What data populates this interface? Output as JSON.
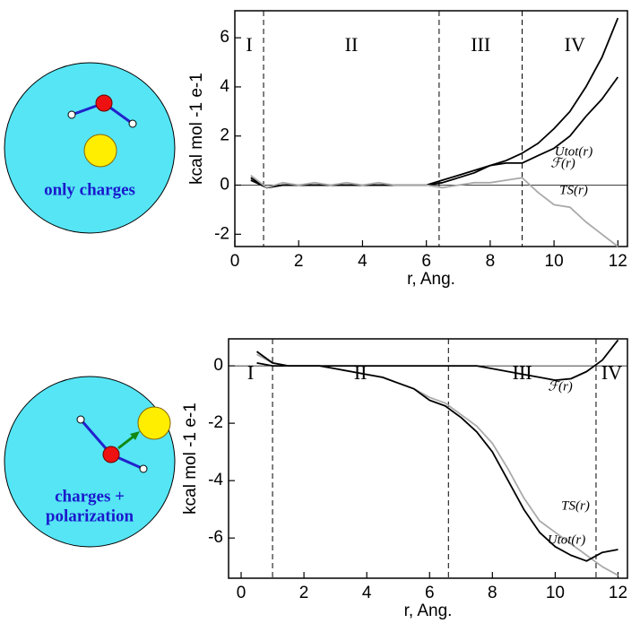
{
  "insets": [
    {
      "lines": [
        "only charges"
      ]
    },
    {
      "lines": [
        "charges +",
        "polarization"
      ]
    }
  ],
  "chart_data": [
    {
      "type": "line",
      "xlabel": "r, Ang.",
      "ylabel": "kcal mol -1  e-1",
      "xlim": [
        0,
        12.3
      ],
      "ylim": [
        -2.5,
        7.1
      ],
      "xticks": [
        0,
        2,
        4,
        6,
        8,
        10,
        12
      ],
      "yticks": [
        -2,
        0,
        2,
        4,
        6
      ],
      "vlines": [
        0.9,
        6.4,
        9.0
      ],
      "regions": [
        "I",
        "II",
        "III",
        "IV"
      ],
      "x": [
        0.5,
        1,
        1.5,
        2,
        2.5,
        3,
        3.5,
        4,
        4.5,
        5,
        5.5,
        6,
        6.5,
        7,
        7.5,
        8,
        8.5,
        9,
        9.5,
        10,
        10.5,
        11,
        11.5,
        12
      ],
      "series": [
        {
          "name": "ℱ(r)",
          "color": "#000000",
          "values": [
            0.2,
            -0.1,
            0,
            0,
            0,
            0,
            0,
            0,
            0,
            0,
            0,
            0,
            0.1,
            0.3,
            0.5,
            0.8,
            1.0,
            1.3,
            1.7,
            2.3,
            3.0,
            4.0,
            5.2,
            6.8
          ]
        },
        {
          "name": "Utot(r)",
          "color": "#000000",
          "values": [
            0.3,
            -0.1,
            0,
            0,
            0,
            0,
            0,
            0,
            0,
            0,
            0,
            0,
            0.2,
            0.4,
            0.6,
            0.8,
            0.9,
            0.9,
            1.2,
            1.5,
            2.0,
            2.8,
            3.5,
            4.4
          ]
        },
        {
          "name": "TS(r)",
          "color": "#aaaaaa",
          "values": [
            0.4,
            -0.1,
            0.1,
            0,
            0.1,
            0,
            0.1,
            0,
            0.1,
            0,
            0,
            0,
            -0.1,
            0,
            0.1,
            0.1,
            0.2,
            0.3,
            -0.3,
            -0.8,
            -0.9,
            -1.5,
            -2.0,
            -2.5
          ]
        }
      ]
    },
    {
      "type": "line",
      "xlabel": "r, Ang.",
      "ylabel": "kcal mol -1  e-1",
      "xlim": [
        -0.4,
        12.3
      ],
      "ylim": [
        -7.4,
        0.94
      ],
      "xticks": [
        0,
        2,
        4,
        6,
        8,
        10,
        12
      ],
      "yticks": [
        -6,
        -4,
        -2,
        0
      ],
      "vlines": [
        1.0,
        6.6,
        11.3
      ],
      "regions": [
        "I",
        "II",
        "III",
        "IV"
      ],
      "x": [
        0.5,
        1,
        1.5,
        2,
        2.5,
        3,
        3.5,
        4,
        4.5,
        5,
        5.5,
        6,
        6.5,
        7,
        7.5,
        8,
        8.5,
        9,
        9.5,
        10,
        10.5,
        11,
        11.5,
        12
      ],
      "series": [
        {
          "name": "ℱ(r)",
          "color": "#000000",
          "values": [
            0.1,
            0,
            0,
            0,
            0,
            0,
            0,
            0,
            0,
            0,
            0,
            0,
            0,
            0,
            0,
            -0.1,
            -0.2,
            -0.3,
            -0.4,
            -0.5,
            -0.45,
            -0.2,
            0.2,
            0.9
          ]
        },
        {
          "name": "TS(r)",
          "color": "#aaaaaa",
          "values": [
            0.4,
            0.1,
            0,
            0,
            0,
            -0.1,
            -0.2,
            -0.3,
            -0.4,
            -0.6,
            -0.8,
            -1.1,
            -1.3,
            -1.7,
            -2.1,
            -2.7,
            -3.6,
            -4.6,
            -5.4,
            -5.8,
            -6.2,
            -6.6,
            -7.0,
            -7.3
          ]
        },
        {
          "name": "Utot(r)",
          "color": "#000000",
          "values": [
            0.5,
            0.1,
            0,
            0,
            0,
            -0.1,
            -0.2,
            -0.3,
            -0.4,
            -0.6,
            -0.8,
            -1.2,
            -1.4,
            -1.8,
            -2.3,
            -3.0,
            -4.0,
            -5.0,
            -5.8,
            -6.3,
            -6.6,
            -6.8,
            -6.5,
            -6.4
          ]
        }
      ]
    }
  ]
}
